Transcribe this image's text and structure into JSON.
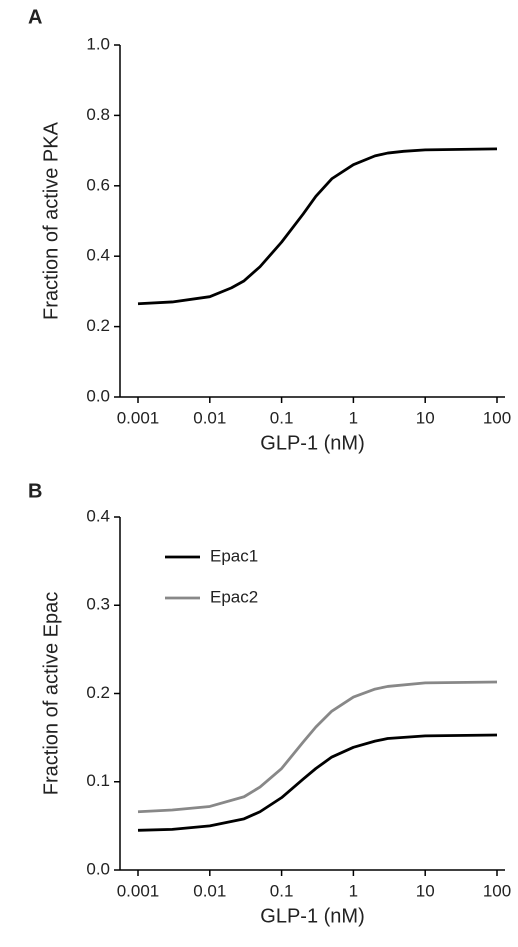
{
  "chart_data": [
    {
      "type": "line",
      "panel_label": "A",
      "xlabel": "GLP-1 (nM)",
      "ylabel": "Fraction of active PKA",
      "xscale": "log",
      "x": [
        0.001,
        0.003,
        0.01,
        0.02,
        0.03,
        0.05,
        0.1,
        0.2,
        0.3,
        0.5,
        1,
        2,
        3,
        5,
        10,
        100
      ],
      "values": [
        0.265,
        0.27,
        0.285,
        0.31,
        0.33,
        0.37,
        0.44,
        0.52,
        0.57,
        0.62,
        0.66,
        0.685,
        0.693,
        0.698,
        0.702,
        0.705
      ],
      "color": "#000000",
      "xlim": [
        0.001,
        100
      ],
      "xticks": [
        0.001,
        0.01,
        0.1,
        1,
        10,
        100
      ],
      "ylim": [
        0,
        1
      ],
      "yticks": [
        {
          "value": 0,
          "label": "0.0"
        },
        0.2,
        0.4,
        0.6,
        0.8,
        {
          "value": 1,
          "label": "1.0"
        }
      ]
    },
    {
      "type": "line",
      "panel_label": "B",
      "xlabel": "GLP-1 (nM)",
      "ylabel": "Fraction of active Epac",
      "xscale": "log",
      "legend": "upper left",
      "x": [
        0.001,
        0.003,
        0.01,
        0.03,
        0.05,
        0.1,
        0.2,
        0.3,
        0.5,
        1,
        2,
        3,
        10,
        100
      ],
      "series": [
        {
          "name": "Epac1",
          "color": "#000000",
          "values": [
            0.045,
            0.046,
            0.05,
            0.058,
            0.066,
            0.082,
            0.103,
            0.115,
            0.128,
            0.139,
            0.146,
            0.149,
            0.152,
            0.153
          ]
        },
        {
          "name": "Epac2",
          "color": "#888888",
          "values": [
            0.066,
            0.068,
            0.072,
            0.083,
            0.094,
            0.115,
            0.145,
            0.162,
            0.18,
            0.196,
            0.205,
            0.208,
            0.212,
            0.213
          ]
        }
      ],
      "xlim": [
        0.001,
        100
      ],
      "xticks": [
        0.001,
        0.01,
        0.1,
        1,
        10,
        100
      ],
      "ylim": [
        0,
        0.4
      ],
      "yticks": [
        {
          "value": 0,
          "label": "0.0"
        },
        0.1,
        0.2,
        0.3,
        0.4
      ]
    }
  ]
}
